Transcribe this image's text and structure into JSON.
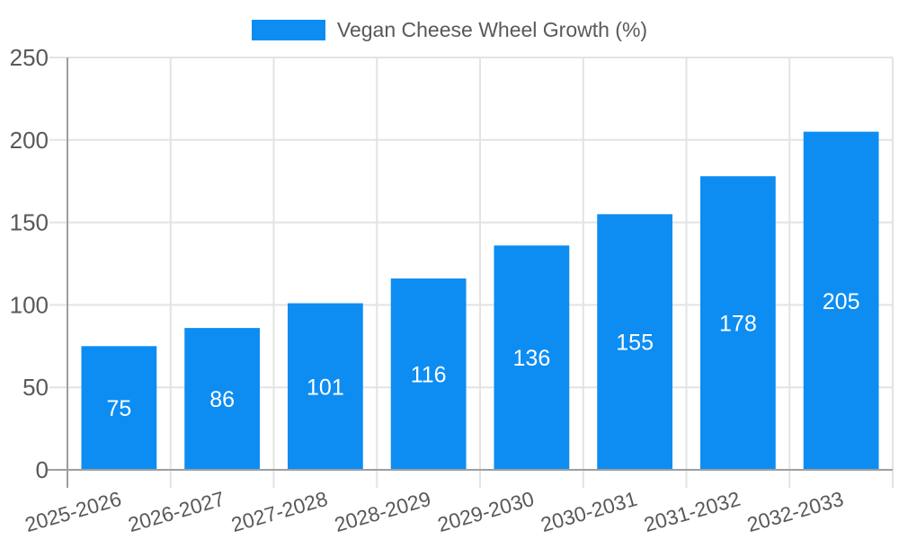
{
  "legend": {
    "series_label": "Vegan Cheese Wheel Growth (%)",
    "swatch_color": "#0d8df2"
  },
  "chart_data": {
    "type": "bar",
    "title": "Vegan Cheese Wheel Growth (%)",
    "categories": [
      "2025-2026",
      "2026-2027",
      "2027-2028",
      "2028-2029",
      "2029-2030",
      "2030-2031",
      "2031-2032",
      "2032-2033"
    ],
    "values": [
      75,
      86,
      101,
      116,
      136,
      155,
      178,
      205
    ],
    "xlabel": "",
    "ylabel": "",
    "ylim": [
      0,
      250
    ],
    "yticks": [
      0,
      50,
      100,
      150,
      200,
      250
    ],
    "grid": true,
    "legend_position": "top",
    "bar_color": "#0d8df2",
    "bar_label_color": "#ffffff",
    "grid_color": "#e3e3e3",
    "axis_color": "#9e9e9e",
    "label_color": "#595959"
  }
}
